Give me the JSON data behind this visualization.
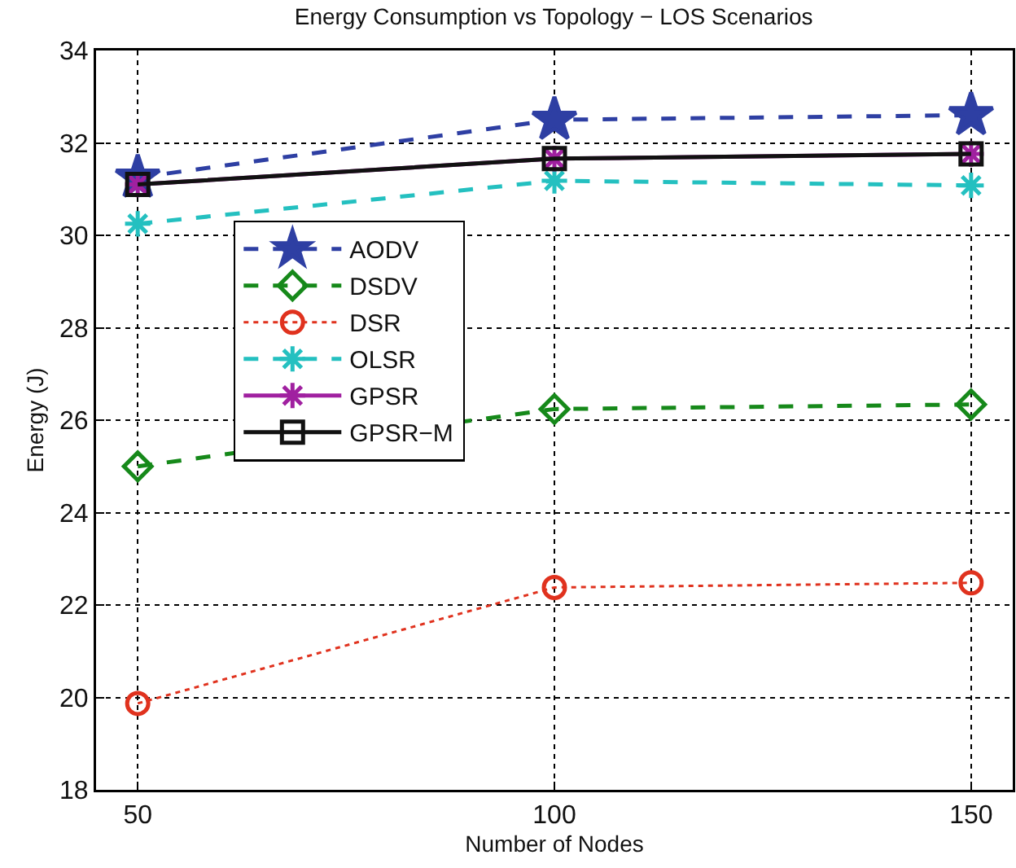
{
  "chart_data": {
    "type": "line",
    "title": "Energy Consumption vs Topology − LOS Scenarios",
    "xlabel": "Number of Nodes",
    "ylabel": "Energy (J)",
    "x": [
      50,
      100,
      150
    ],
    "xlim": [
      45,
      155
    ],
    "xticks": [
      50,
      100,
      150
    ],
    "ylim": [
      18,
      34
    ],
    "yticks": [
      18,
      20,
      22,
      24,
      26,
      28,
      30,
      32,
      34
    ],
    "grid": true,
    "legend": "left",
    "series": [
      {
        "name": "AODV",
        "color": "#2e3fa3",
        "values": [
          31.25,
          32.5,
          32.6
        ],
        "marker": "star",
        "line_style": "dashed"
      },
      {
        "name": "DSDV",
        "color": "#16891a",
        "values": [
          25.0,
          26.24,
          26.34
        ],
        "marker": "diamond",
        "line_style": "dashed"
      },
      {
        "name": "DSR",
        "color": "#e0321e",
        "values": [
          19.87,
          22.38,
          22.48
        ],
        "marker": "circle",
        "line_style": "dotted"
      },
      {
        "name": "OLSR",
        "color": "#24c0c0",
        "values": [
          30.25,
          31.18,
          31.08
        ],
        "marker": "cross",
        "line_style": "dashed"
      },
      {
        "name": "GPSR",
        "color": "#a020a0",
        "values": [
          31.1,
          31.66,
          31.76
        ],
        "marker": "cross",
        "line_style": "solid"
      },
      {
        "name": "GPSR−M",
        "color": "#111111",
        "values": [
          31.1,
          31.66,
          31.76
        ],
        "marker": "square",
        "line_style": "solid"
      }
    ]
  }
}
